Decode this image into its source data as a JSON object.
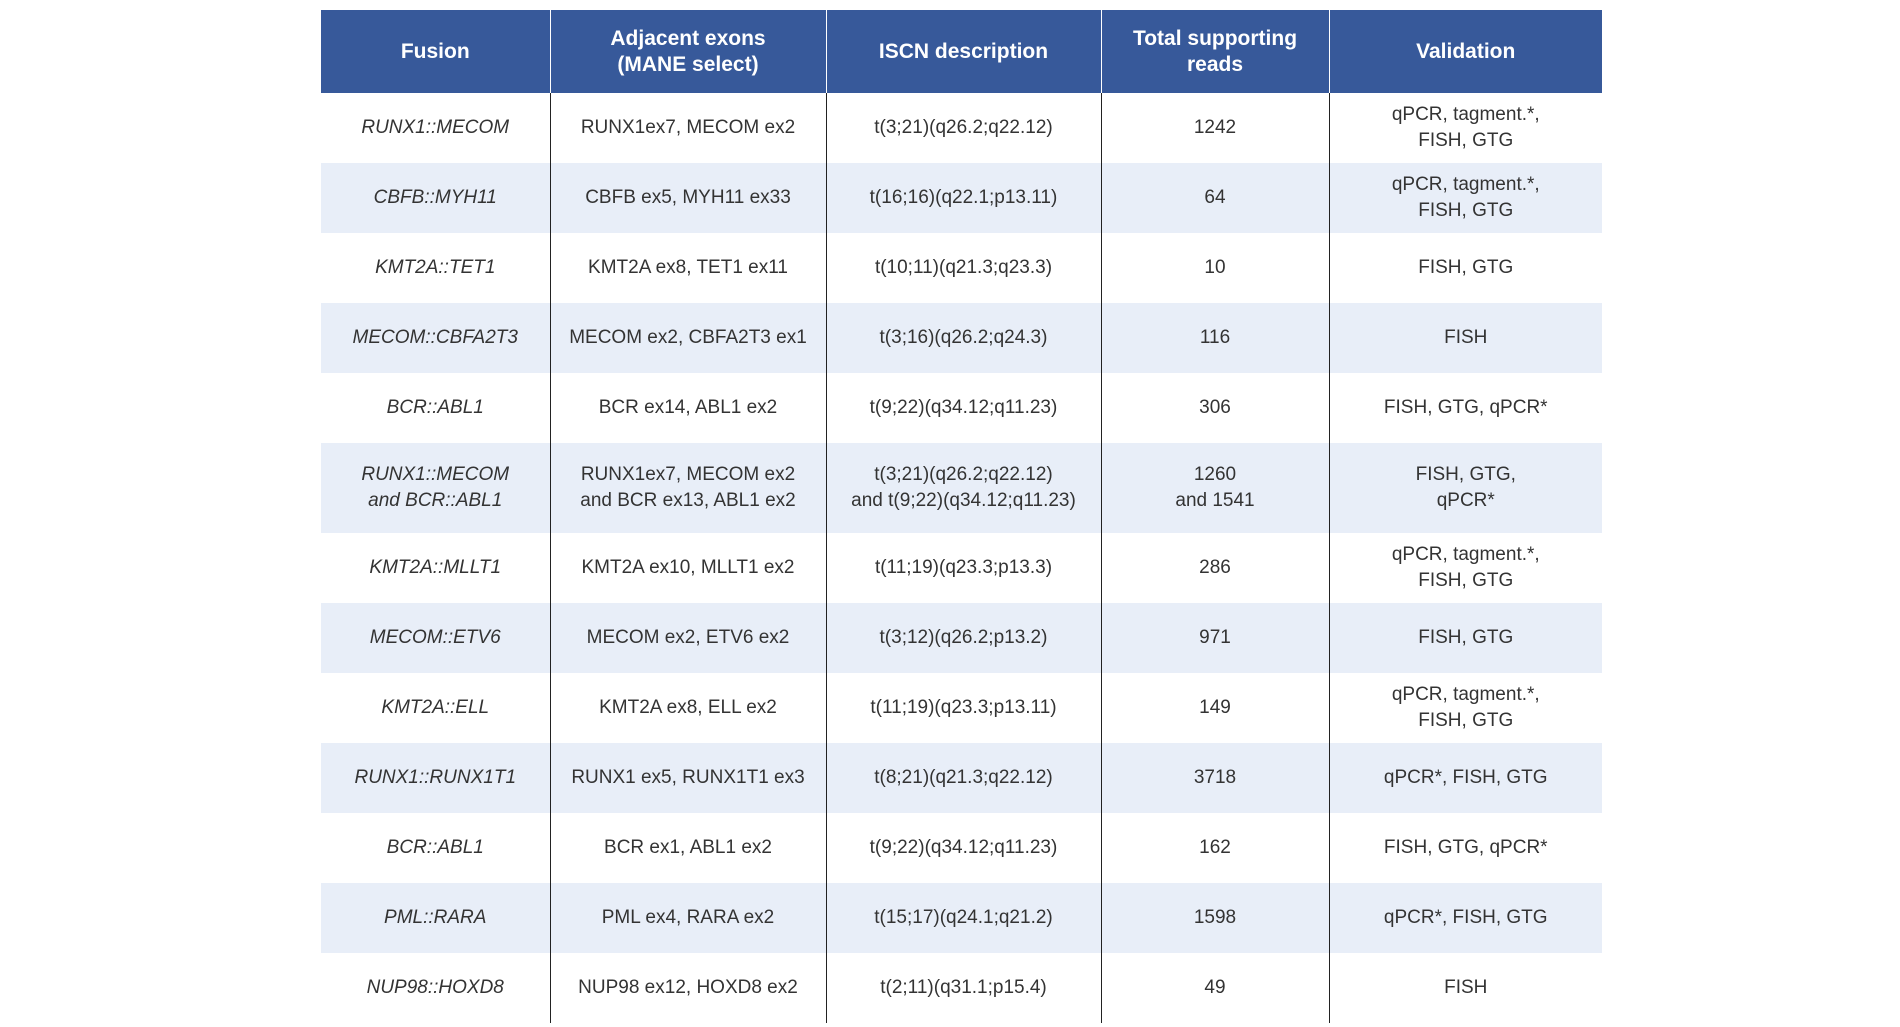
{
  "table": {
    "headers": [
      [
        "Fusion"
      ],
      [
        "Adjacent exons",
        "(MANE select)"
      ],
      [
        "ISCN description"
      ],
      [
        "Total supporting",
        "reads"
      ],
      [
        "Validation"
      ]
    ],
    "rows": [
      [
        [
          "RUNX1::MECOM"
        ],
        [
          "RUNX1ex7, MECOM ex2"
        ],
        [
          "t(3;21)(q26.2;q22.12)"
        ],
        [
          "1242"
        ],
        [
          "qPCR, tagment.*,",
          "FISH, GTG"
        ]
      ],
      [
        [
          "CBFB::MYH11"
        ],
        [
          "CBFB ex5, MYH11 ex33"
        ],
        [
          "t(16;16)(q22.1;p13.11)"
        ],
        [
          "64"
        ],
        [
          "qPCR, tagment.*,",
          "FISH, GTG"
        ]
      ],
      [
        [
          "KMT2A::TET1"
        ],
        [
          "KMT2A ex8, TET1 ex11"
        ],
        [
          "t(10;11)(q21.3;q23.3)"
        ],
        [
          "10"
        ],
        [
          "FISH, GTG"
        ]
      ],
      [
        [
          "MECOM::CBFA2T3"
        ],
        [
          "MECOM ex2, CBFA2T3 ex1"
        ],
        [
          "t(3;16)(q26.2;q24.3)"
        ],
        [
          "116"
        ],
        [
          "FISH"
        ]
      ],
      [
        [
          "BCR::ABL1"
        ],
        [
          "BCR ex14, ABL1 ex2"
        ],
        [
          "t(9;22)(q34.12;q11.23)"
        ],
        [
          "306"
        ],
        [
          "FISH, GTG, qPCR*"
        ]
      ],
      [
        [
          "RUNX1::MECOM",
          "and BCR::ABL1"
        ],
        [
          "RUNX1ex7, MECOM ex2",
          "and BCR ex13, ABL1 ex2"
        ],
        [
          "t(3;21)(q26.2;q22.12)",
          "and t(9;22)(q34.12;q11.23)"
        ],
        [
          "1260",
          "and 1541"
        ],
        [
          "FISH, GTG,",
          "qPCR*"
        ]
      ],
      [
        [
          "KMT2A::MLLT1"
        ],
        [
          "KMT2A ex10, MLLT1 ex2"
        ],
        [
          "t(11;19)(q23.3;p13.3)"
        ],
        [
          "286"
        ],
        [
          "qPCR, tagment.*,",
          "FISH, GTG"
        ]
      ],
      [
        [
          "MECOM::ETV6"
        ],
        [
          "MECOM ex2, ETV6 ex2"
        ],
        [
          "t(3;12)(q26.2;p13.2)"
        ],
        [
          "971"
        ],
        [
          "FISH, GTG"
        ]
      ],
      [
        [
          "KMT2A::ELL"
        ],
        [
          "KMT2A ex8, ELL ex2"
        ],
        [
          "t(11;19)(q23.3;p13.11)"
        ],
        [
          "149"
        ],
        [
          "qPCR, tagment.*,",
          "FISH, GTG"
        ]
      ],
      [
        [
          "RUNX1::RUNX1T1"
        ],
        [
          "RUNX1 ex5, RUNX1T1 ex3"
        ],
        [
          "t(8;21)(q21.3;q22.12)"
        ],
        [
          "3718"
        ],
        [
          "qPCR*, FISH, GTG"
        ]
      ],
      [
        [
          "BCR::ABL1"
        ],
        [
          "BCR ex1, ABL1 ex2"
        ],
        [
          "t(9;22)(q34.12;q11.23)"
        ],
        [
          "162"
        ],
        [
          "FISH, GTG, qPCR*"
        ]
      ],
      [
        [
          "PML::RARA"
        ],
        [
          "PML ex4, RARA ex2"
        ],
        [
          "t(15;17)(q24.1;q21.2)"
        ],
        [
          "1598"
        ],
        [
          "qPCR*, FISH, GTG"
        ]
      ],
      [
        [
          "NUP98::HOXD8"
        ],
        [
          "NUP98 ex12, HOXD8 ex2"
        ],
        [
          "t(2;11)(q31.1;p15.4)"
        ],
        [
          "49"
        ],
        [
          "FISH"
        ]
      ]
    ]
  }
}
